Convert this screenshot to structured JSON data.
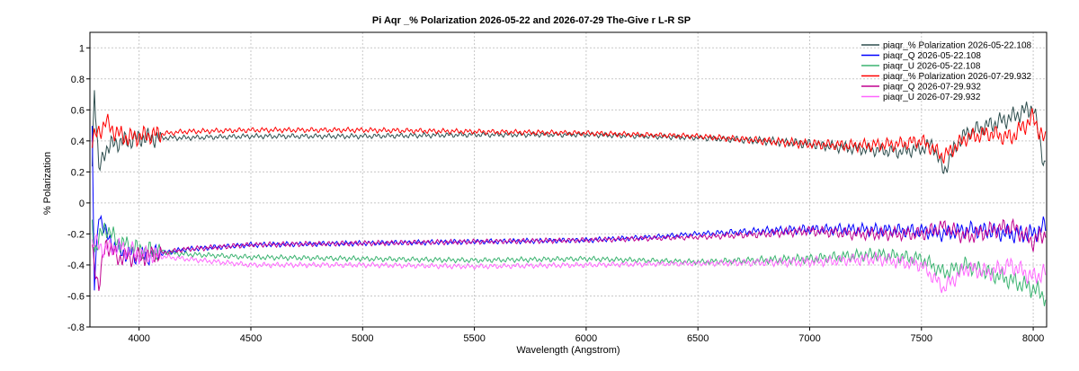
{
  "chart_data": {
    "type": "line",
    "title": "Pi Aqr _% Polarization  2026-05-22  and  2026-07-29  The-Give r L-R  SP",
    "xlabel": "Wavelength (Angstrom)",
    "ylabel": "% Polarization",
    "xlim": [
      3780,
      8060
    ],
    "ylim": [
      -0.8,
      1.1
    ],
    "x_ticks": [
      4000,
      4500,
      5000,
      5500,
      6000,
      6500,
      7000,
      7500,
      8000
    ],
    "x_tick_labels": [
      "4000",
      "4500",
      "5000",
      "5500",
      "6000",
      "6500",
      "7000",
      "7500",
      "8000"
    ],
    "y_ticks": [
      -0.8,
      -0.6,
      -0.4,
      -0.2,
      0,
      0.2,
      0.4,
      0.6,
      0.8,
      1
    ],
    "y_tick_labels": [
      "-0.8",
      "-0.6",
      "-0.4",
      "-0.2",
      "0",
      "0.2",
      "0.4",
      "0.6",
      "0.8",
      "1"
    ],
    "grid": true,
    "legend_position": "top-right",
    "series": [
      {
        "name": "piaqr_% Polarization  2026-05-22.108",
        "color": "#2f4f4f",
        "x": [
          3790,
          3800,
          3820,
          3850,
          3900,
          3950,
          4000,
          4200,
          4500,
          5000,
          5500,
          6000,
          6500,
          6800,
          7000,
          7200,
          7400,
          7500,
          7550,
          7600,
          7650,
          7700,
          7800,
          7900,
          8000,
          8050
        ],
        "y": [
          0.25,
          0.75,
          0.2,
          0.35,
          0.39,
          0.4,
          0.42,
          0.42,
          0.43,
          0.43,
          0.44,
          0.44,
          0.42,
          0.4,
          0.38,
          0.35,
          0.33,
          0.35,
          0.38,
          0.2,
          0.36,
          0.45,
          0.5,
          0.55,
          0.62,
          0.25
        ]
      },
      {
        "name": "piaqr_Q  2026-05-22.108",
        "color": "#0000ff",
        "x": [
          3790,
          3800,
          3820,
          3850,
          3900,
          4000,
          4200,
          4500,
          5000,
          5500,
          6000,
          6300,
          6500,
          6800,
          7000,
          7200,
          7500,
          7600,
          7700,
          7800,
          7900,
          8000,
          8050
        ],
        "y": [
          0.45,
          -0.55,
          -0.05,
          -0.2,
          -0.3,
          -0.35,
          -0.3,
          -0.27,
          -0.26,
          -0.25,
          -0.24,
          -0.22,
          -0.2,
          -0.18,
          -0.17,
          -0.17,
          -0.18,
          -0.2,
          -0.17,
          -0.18,
          -0.2,
          -0.2,
          -0.15
        ]
      },
      {
        "name": "piaqr_U  2026-05-22.108",
        "color": "#3cb371",
        "x": [
          3790,
          3800,
          3850,
          3900,
          4000,
          4200,
          4500,
          5000,
          5500,
          6000,
          6500,
          7000,
          7300,
          7500,
          7600,
          7700,
          7800,
          7900,
          8000,
          8050
        ],
        "y": [
          -0.1,
          -0.3,
          -0.15,
          -0.25,
          -0.3,
          -0.33,
          -0.35,
          -0.36,
          -0.37,
          -0.36,
          -0.38,
          -0.36,
          -0.33,
          -0.36,
          -0.45,
          -0.4,
          -0.45,
          -0.5,
          -0.55,
          -0.6
        ]
      },
      {
        "name": "piaqr_% Polarization  2026-07-29.932",
        "color": "#ff0000",
        "x": [
          3790,
          3850,
          3900,
          3950,
          4000,
          4200,
          4500,
          5000,
          5500,
          6000,
          6500,
          6800,
          7000,
          7200,
          7400,
          7500,
          7600,
          7700,
          7800,
          7900,
          8000,
          8050
        ],
        "y": [
          0.4,
          0.52,
          0.45,
          0.42,
          0.43,
          0.46,
          0.47,
          0.47,
          0.46,
          0.45,
          0.43,
          0.4,
          0.38,
          0.37,
          0.38,
          0.4,
          0.3,
          0.42,
          0.45,
          0.42,
          0.55,
          0.4
        ]
      },
      {
        "name": "piaqr_Q  2026-07-29.932",
        "color": "#c0008f",
        "x": [
          3790,
          3820,
          3850,
          3900,
          4000,
          4200,
          4500,
          5000,
          5500,
          6000,
          6500,
          6800,
          7000,
          7200,
          7500,
          7600,
          7700,
          7800,
          7900,
          8000,
          8050
        ],
        "y": [
          -0.3,
          -0.55,
          -0.25,
          -0.35,
          -0.35,
          -0.3,
          -0.27,
          -0.26,
          -0.25,
          -0.24,
          -0.22,
          -0.2,
          -0.18,
          -0.2,
          -0.2,
          -0.15,
          -0.22,
          -0.18,
          -0.15,
          -0.25,
          -0.2
        ]
      },
      {
        "name": "piaqr_U  2026-07-29.932",
        "color": "#ff66ff",
        "x": [
          3790,
          3850,
          3900,
          4000,
          4200,
          4500,
          5000,
          5500,
          6000,
          6500,
          7000,
          7300,
          7500,
          7600,
          7700,
          7800,
          7900,
          8000,
          8050
        ],
        "y": [
          -0.25,
          -0.3,
          -0.28,
          -0.33,
          -0.36,
          -0.4,
          -0.4,
          -0.41,
          -0.4,
          -0.39,
          -0.38,
          -0.36,
          -0.4,
          -0.55,
          -0.42,
          -0.45,
          -0.4,
          -0.48,
          -0.45
        ]
      }
    ]
  }
}
